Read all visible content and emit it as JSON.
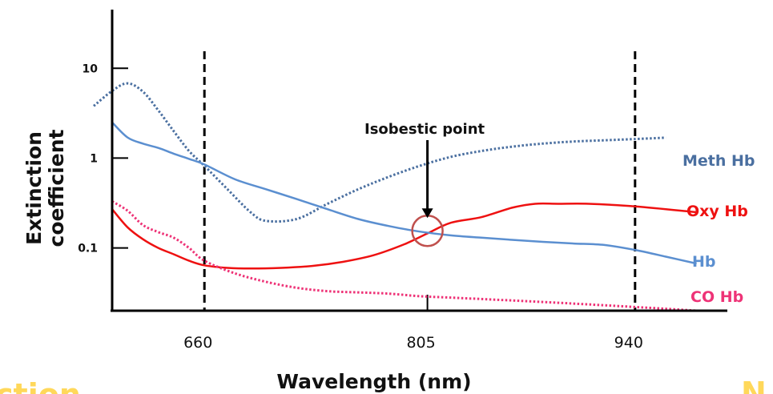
{
  "chart_data": {
    "type": "line",
    "title": "",
    "xlabel": "Wavelength (nm)",
    "ylabel": "Extinction coefficient",
    "ylabel_lines": [
      "Extinction",
      "coefficient"
    ],
    "xscale": "linear",
    "yscale": "log",
    "xlim": [
      600,
      1000
    ],
    "ylim": [
      0.02,
      45
    ],
    "xticks": [
      660,
      805,
      940
    ],
    "xtick_labels": [
      "660",
      "805",
      "940"
    ],
    "yticks": [
      0.1,
      1,
      10
    ],
    "ytick_labels": [
      "0.1",
      "1",
      "10"
    ],
    "grid": false,
    "reference_lines": [
      660,
      940
    ],
    "series": [
      {
        "name": "Meth Hb",
        "color": "#4a6fa0",
        "style": "dotted",
        "x": [
          588,
          600,
          610,
          620,
          630,
          640,
          650,
          660,
          675,
          690,
          700,
          720,
          740,
          760,
          780,
          800,
          820,
          840,
          860,
          880,
          900,
          920,
          940,
          960
        ],
        "y": [
          3.8,
          5.6,
          6.8,
          5.5,
          3.4,
          2.0,
          1.2,
          0.82,
          0.45,
          0.25,
          0.2,
          0.21,
          0.31,
          0.45,
          0.62,
          0.82,
          1.03,
          1.2,
          1.34,
          1.45,
          1.53,
          1.58,
          1.63,
          1.69
        ]
      },
      {
        "name": "Oxy Hb",
        "color": "#ee1111",
        "style": "solid",
        "x": [
          600,
          610,
          620,
          630,
          640,
          650,
          660,
          675,
          690,
          710,
          730,
          750,
          770,
          790,
          805,
          820,
          840,
          860,
          875,
          890,
          910,
          940,
          970,
          980
        ],
        "y": [
          0.27,
          0.17,
          0.125,
          0.1,
          0.085,
          0.072,
          0.064,
          0.06,
          0.059,
          0.06,
          0.063,
          0.07,
          0.083,
          0.11,
          0.145,
          0.19,
          0.22,
          0.28,
          0.31,
          0.31,
          0.31,
          0.29,
          0.26,
          0.25
        ]
      },
      {
        "name": "Hb",
        "color": "#5b8fd0",
        "style": "solid",
        "x": [
          600,
          610,
          620,
          630,
          640,
          650,
          660,
          680,
          700,
          720,
          740,
          760,
          780,
          800,
          820,
          840,
          860,
          880,
          900,
          920,
          940,
          960,
          980
        ],
        "y": [
          2.5,
          1.7,
          1.45,
          1.3,
          1.12,
          0.98,
          0.85,
          0.58,
          0.45,
          0.35,
          0.27,
          0.21,
          0.175,
          0.152,
          0.138,
          0.13,
          0.123,
          0.117,
          0.112,
          0.108,
          0.095,
          0.08,
          0.067
        ]
      },
      {
        "name": "CO Hb",
        "color": "#ee3377",
        "style": "dotted",
        "x": [
          600,
          610,
          620,
          630,
          640,
          650,
          660,
          680,
          700,
          720,
          740,
          760,
          780,
          800,
          820,
          840,
          860,
          880,
          900,
          920,
          940,
          960,
          980
        ],
        "y": [
          0.33,
          0.26,
          0.18,
          0.15,
          0.13,
          0.1,
          0.072,
          0.052,
          0.042,
          0.036,
          0.033,
          0.032,
          0.031,
          0.029,
          0.028,
          0.027,
          0.026,
          0.025,
          0.024,
          0.023,
          0.022,
          0.021,
          0.02
        ]
      }
    ],
    "annotations": [
      {
        "text": "Isobestic point",
        "x": 805,
        "y": 0.155
      }
    ]
  },
  "background_text": [
    "ction",
    "N"
  ],
  "colors": {
    "axis": "#000000",
    "marker_circle": "#c0504d",
    "background_text": "#ffd85a"
  }
}
